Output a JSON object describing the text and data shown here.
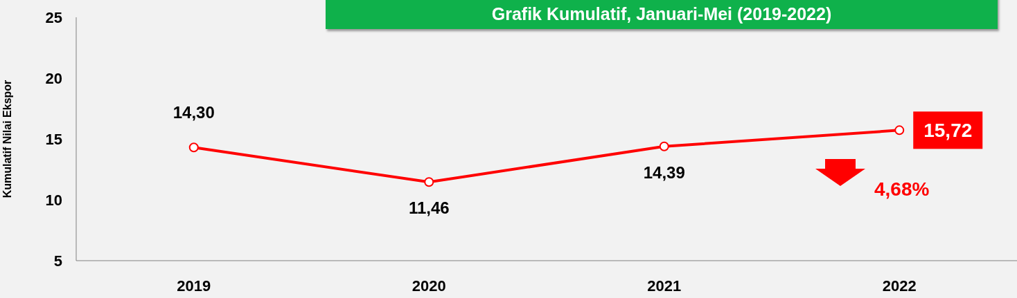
{
  "chart_data": {
    "type": "line",
    "title": "Grafik Kumulatif, Januari-Mei (2019-2022)",
    "ylabel": "Kumulatif Nilai Ekspor",
    "categories": [
      "2019",
      "2020",
      "2021",
      "2022"
    ],
    "series": [
      {
        "color": "#ff0000",
        "values": [
          14.3,
          11.46,
          14.39,
          15.72
        ],
        "value_labels": [
          "14,30",
          "11,46",
          "14,39",
          "15,72"
        ]
      }
    ],
    "ylim": [
      5,
      25
    ],
    "yticks": [
      5,
      10,
      15,
      20,
      25
    ],
    "grid": false,
    "legend": false,
    "marker": "circle",
    "line_style": "solid",
    "annotations": [
      "4,68%"
    ]
  }
}
